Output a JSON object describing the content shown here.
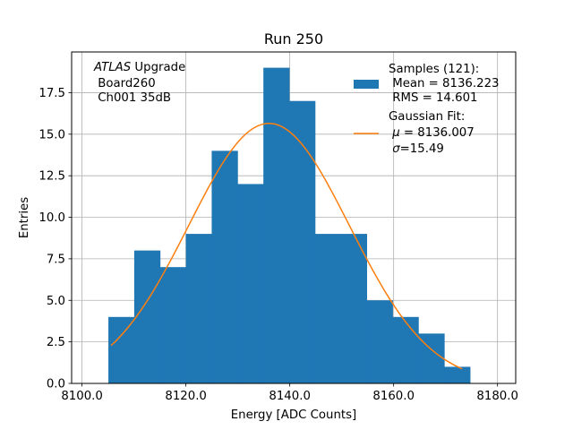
{
  "chart_data": {
    "type": "bar",
    "title": "Run 250",
    "xlabel": "Energy [ADC Counts]",
    "ylabel": "Entries",
    "xlim": [
      8098,
      8183.5
    ],
    "ylim": [
      0,
      19.95
    ],
    "grid": true,
    "bin_edges": [
      8105.08,
      8110.05,
      8115.03,
      8120.0,
      8124.97,
      8129.95,
      8134.92,
      8139.9,
      8144.87,
      8149.85,
      8154.82,
      8159.8,
      8164.77,
      8169.75,
      8174.72
    ],
    "counts": [
      4,
      8,
      7,
      9,
      14,
      12,
      19,
      17,
      9,
      9,
      5,
      4,
      3,
      1
    ],
    "x_ticks": [
      8100,
      8120,
      8140,
      8160,
      8180
    ],
    "x_tick_labels": [
      "8100.0",
      "8120.0",
      "8140.0",
      "8160.0",
      "8180.0"
    ],
    "y_ticks": [
      0,
      2.5,
      5,
      7.5,
      10,
      12.5,
      15,
      17.5
    ],
    "y_tick_labels": [
      "0.0",
      "2.5",
      "5.0",
      "7.5",
      "10.0",
      "12.5",
      "15.0",
      "17.5"
    ],
    "fit": {
      "mu": 8136.007,
      "sigma": 15.49,
      "amplitude": 15.65,
      "x_range": [
        8105.6,
        8173.2
      ]
    },
    "annotation": {
      "italic": "ATLAS",
      "rest": " Upgrade",
      "line2": " Board260",
      "line3": " Ch001 35dB"
    },
    "legend": {
      "position": "top-right",
      "entries": [
        {
          "name": "Samples (121):",
          "lines": [
            " Mean = 8136.223",
            " RMS = 14.601"
          ],
          "kind": "patch",
          "color": "#1f77b4"
        },
        {
          "name": "Gaussian Fit:",
          "lines": [
            " $\\mu$ = 8136.007",
            " $\\sigma$=15.49"
          ],
          "kind": "line",
          "color": "#ff7f0e"
        }
      ]
    },
    "colors": {
      "bars": "#1f77b4",
      "fit": "#ff7f0e",
      "grid": "#b0b0b0"
    }
  }
}
